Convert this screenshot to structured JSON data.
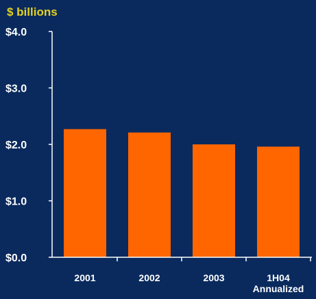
{
  "chart_data": {
    "type": "bar",
    "unit_label": "$ billions",
    "categories": [
      [
        "2001"
      ],
      [
        "2002"
      ],
      [
        "2003"
      ],
      [
        "1H04",
        "Annualized"
      ]
    ],
    "values": [
      2.27,
      2.21,
      2.0,
      1.96
    ],
    "ylim": [
      0,
      4
    ],
    "yticks": [
      "$0.0",
      "$1.0",
      "$2.0",
      "$3.0",
      "$4.0"
    ],
    "ytick_values": [
      0,
      1,
      2,
      3,
      4
    ],
    "grid": false,
    "colors": {
      "background": "#0a2a5e",
      "bar": "#ff6600",
      "axis": "#ffffff",
      "unit_label": "#e6d21e"
    }
  }
}
